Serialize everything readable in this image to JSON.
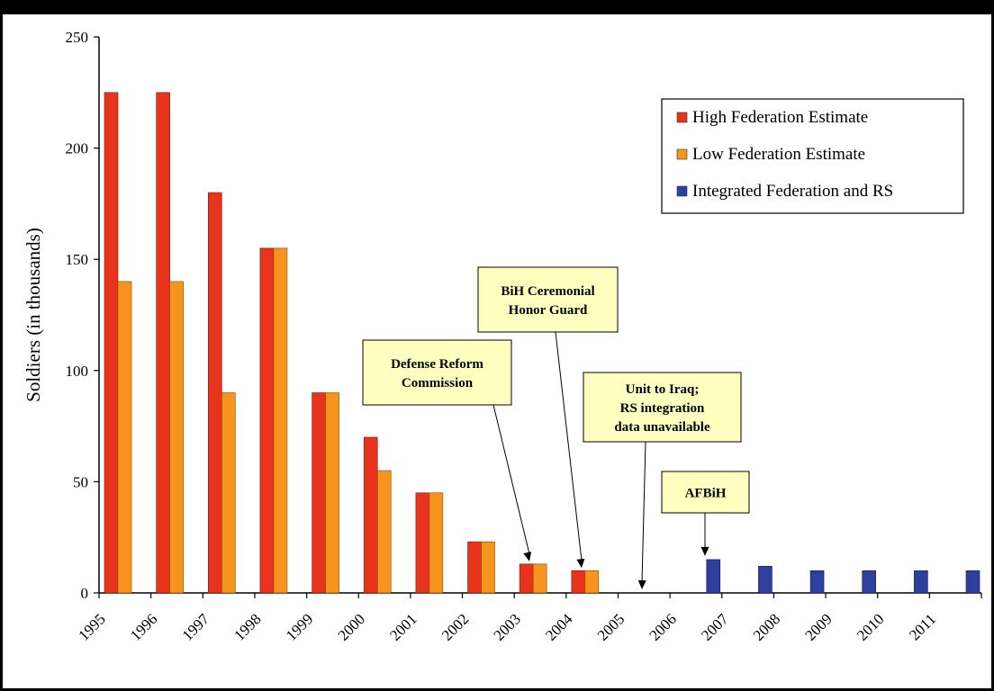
{
  "chart_data": {
    "type": "bar",
    "ylabel": "Soldiers (in thousands)",
    "xlabel": "",
    "ylim": [
      0,
      250
    ],
    "yticks": [
      0,
      50,
      100,
      150,
      200,
      250
    ],
    "categories": [
      "1995",
      "1996",
      "1997",
      "1998",
      "1999",
      "2000",
      "2001",
      "2002",
      "2003",
      "2004",
      "2005",
      "2006",
      "2007",
      "2008",
      "2009",
      "2010",
      "2011"
    ],
    "series": [
      {
        "name": "High Federation Estimate",
        "color": "#e8341c",
        "values": [
          225,
          225,
          180,
          155,
          90,
          70,
          45,
          23,
          13,
          10,
          null,
          null,
          null,
          null,
          null,
          null,
          null
        ]
      },
      {
        "name": "Low Federation Estimate",
        "color": "#f7941d",
        "values": [
          140,
          140,
          90,
          155,
          90,
          55,
          45,
          23,
          13,
          10,
          null,
          null,
          null,
          null,
          null,
          null,
          null
        ]
      },
      {
        "name": "Integrated Federation and RS",
        "color": "#2e3f9e",
        "values": [
          null,
          null,
          null,
          null,
          null,
          null,
          null,
          null,
          null,
          null,
          null,
          15,
          12,
          10,
          10,
          10,
          10
        ]
      }
    ],
    "legend": {
      "position": "top-right"
    },
    "grid": false,
    "annotations": [
      {
        "id": "defense-reform",
        "lines": [
          "Defense Reform",
          "Commission"
        ],
        "category": "2003",
        "value": 13
      },
      {
        "id": "ceremonial-guard",
        "lines": [
          "BiH Ceremonial",
          "Honor Guard"
        ],
        "category": "2004",
        "value": 10
      },
      {
        "id": "unit-iraq",
        "lines": [
          "Unit to Iraq;",
          "RS integration",
          "data unavailable"
        ],
        "category": "2005",
        "value": 0
      },
      {
        "id": "afbih",
        "lines": [
          "AFBiH"
        ],
        "category": "2006",
        "value": 15
      }
    ]
  }
}
